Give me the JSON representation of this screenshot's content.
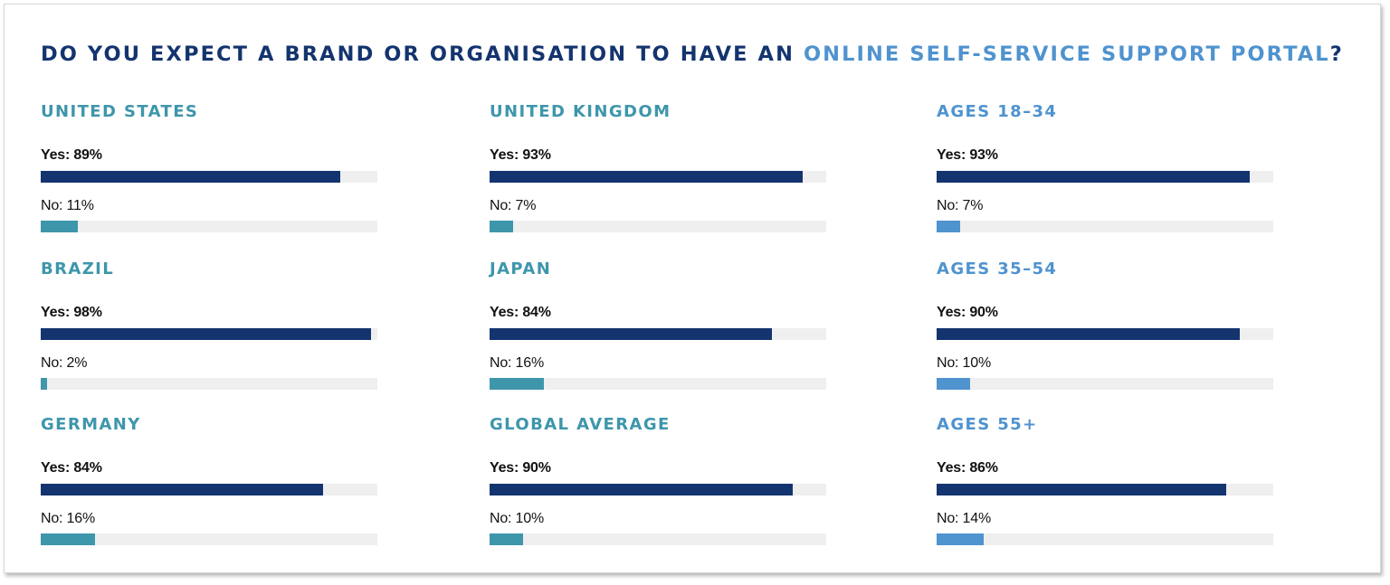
{
  "title": {
    "prefix": "DO YOU EXPECT A BRAND OR ORGANISATION TO HAVE AN ",
    "highlight": "ONLINE SELF-SERVICE SUPPORT PORTAL",
    "suffix": "?"
  },
  "colors": {
    "title": "#14346f",
    "title_highlight": "#4f93cf",
    "yes_bar": "#14346f",
    "no_bar_country": "#3e96ab",
    "no_bar_age": "#4f93cf",
    "country_heading": "#3e96ab",
    "age_heading": "#4f93cf",
    "track": "#efefef"
  },
  "chart_data": [
    {
      "type": "bar",
      "title": "UNITED STATES",
      "kind": "country",
      "categories": [
        "Yes",
        "No"
      ],
      "values": [
        89,
        11
      ],
      "labels": [
        "Yes: 89%",
        "No: 11%"
      ],
      "xlim": [
        0,
        100
      ]
    },
    {
      "type": "bar",
      "title": "BRAZIL",
      "kind": "country",
      "categories": [
        "Yes",
        "No"
      ],
      "values": [
        98,
        2
      ],
      "labels": [
        "Yes: 98%",
        "No: 2%"
      ],
      "xlim": [
        0,
        100
      ]
    },
    {
      "type": "bar",
      "title": "GERMANY",
      "kind": "country",
      "categories": [
        "Yes",
        "No"
      ],
      "values": [
        84,
        16
      ],
      "labels": [
        "Yes: 84%",
        "No: 16%"
      ],
      "xlim": [
        0,
        100
      ]
    },
    {
      "type": "bar",
      "title": "UNITED KINGDOM",
      "kind": "country",
      "categories": [
        "Yes",
        "No"
      ],
      "values": [
        93,
        7
      ],
      "labels": [
        "Yes: 93%",
        "No: 7%"
      ],
      "xlim": [
        0,
        100
      ]
    },
    {
      "type": "bar",
      "title": "JAPAN",
      "kind": "country",
      "categories": [
        "Yes",
        "No"
      ],
      "values": [
        84,
        16
      ],
      "labels": [
        "Yes: 84%",
        "No: 16%"
      ],
      "xlim": [
        0,
        100
      ]
    },
    {
      "type": "bar",
      "title": "GLOBAL AVERAGE",
      "kind": "country",
      "categories": [
        "Yes",
        "No"
      ],
      "values": [
        90,
        10
      ],
      "labels": [
        "Yes: 90%",
        "No: 10%"
      ],
      "xlim": [
        0,
        100
      ]
    },
    {
      "type": "bar",
      "title": "AGES 18–34",
      "kind": "age",
      "categories": [
        "Yes",
        "No"
      ],
      "values": [
        93,
        7
      ],
      "labels": [
        "Yes: 93%",
        "No: 7%"
      ],
      "xlim": [
        0,
        100
      ]
    },
    {
      "type": "bar",
      "title": "AGES 35–54",
      "kind": "age",
      "categories": [
        "Yes",
        "No"
      ],
      "values": [
        90,
        10
      ],
      "labels": [
        "Yes: 90%",
        "No: 10%"
      ],
      "xlim": [
        0,
        100
      ]
    },
    {
      "type": "bar",
      "title": "AGES 55+",
      "kind": "age",
      "categories": [
        "Yes",
        "No"
      ],
      "values": [
        86,
        14
      ],
      "labels": [
        "Yes: 86%",
        "No: 14%"
      ],
      "xlim": [
        0,
        100
      ]
    }
  ]
}
